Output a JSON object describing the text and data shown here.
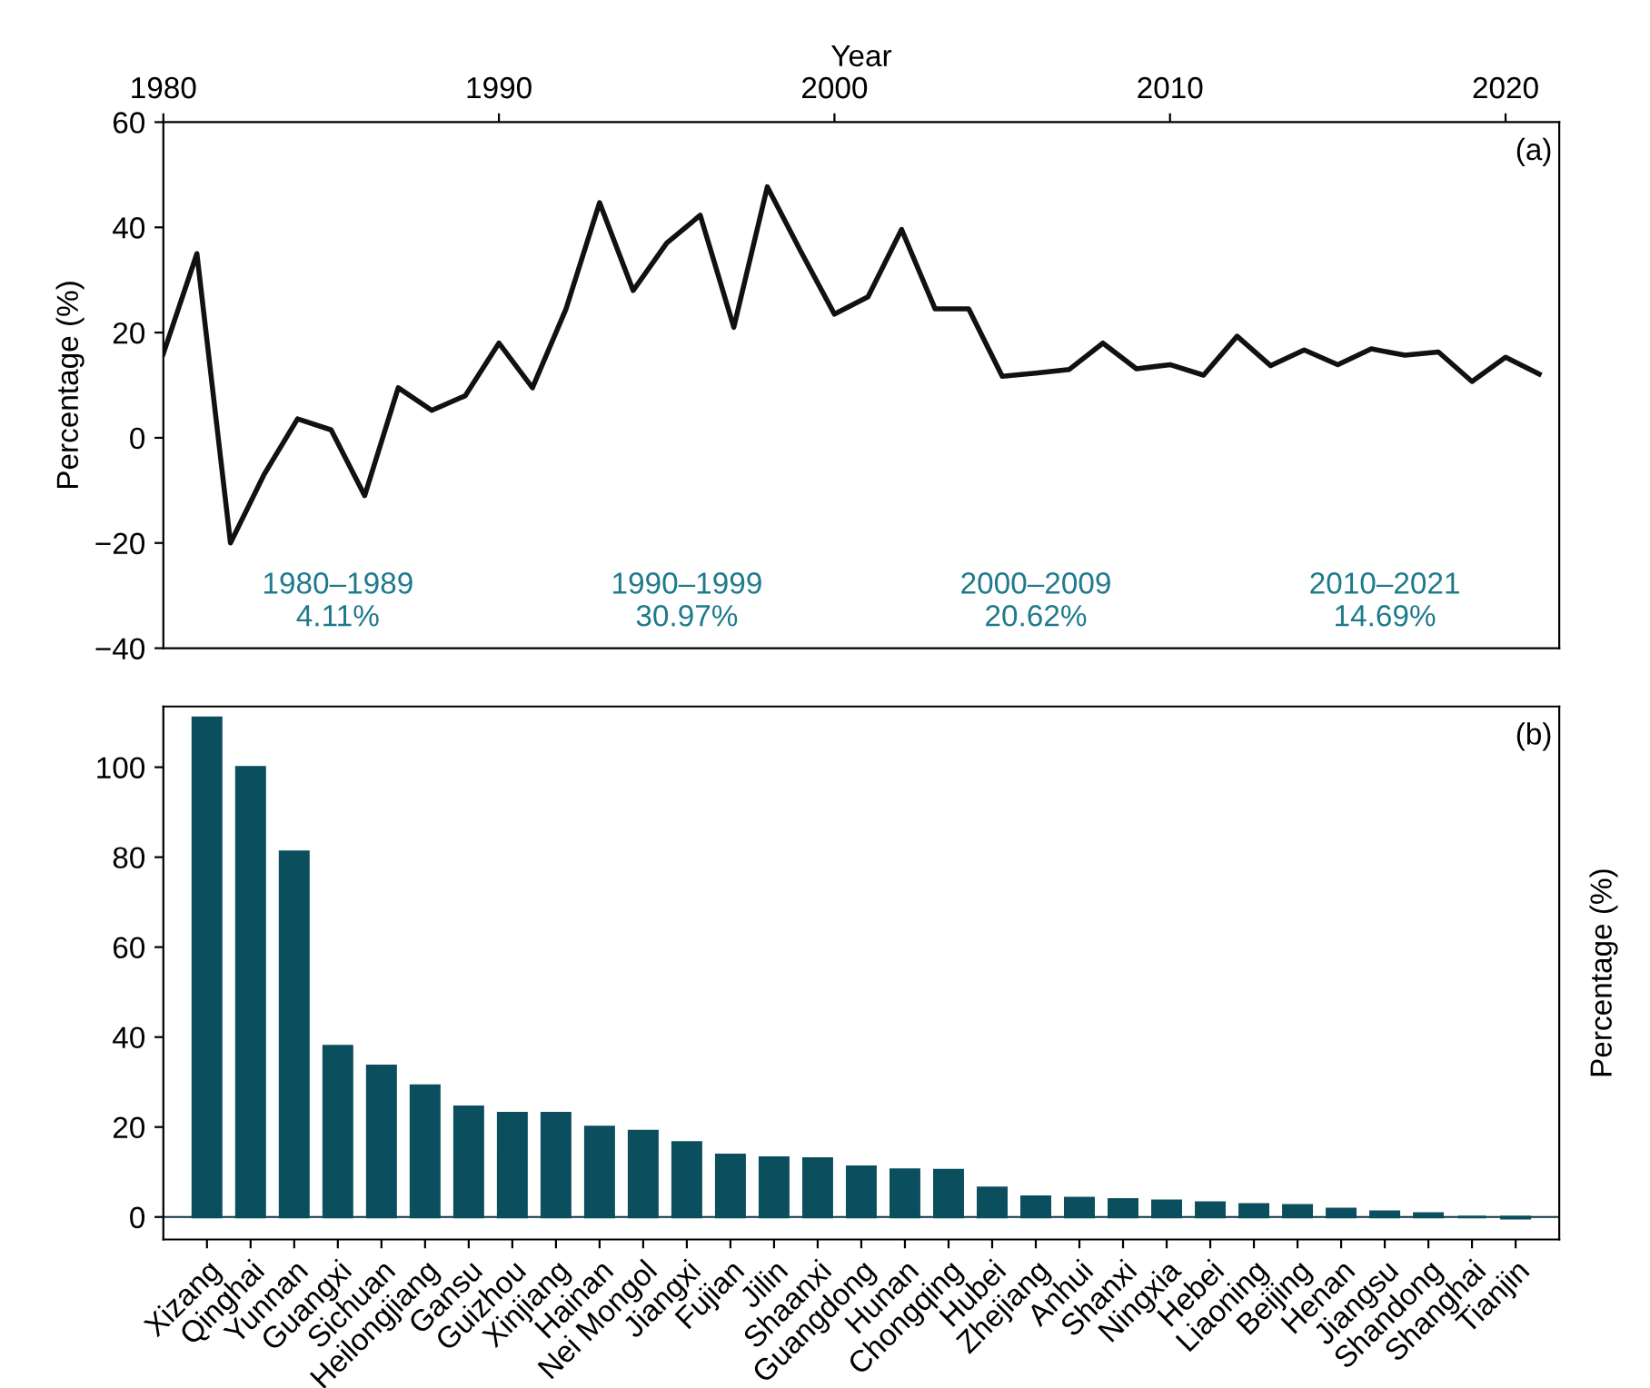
{
  "chart_data": [
    {
      "type": "line",
      "xlabel": "Year",
      "ylabel": "Percentage (%)",
      "xlim": [
        1980,
        2021.6
      ],
      "xticks": [
        1980,
        1990,
        2000,
        2010,
        2020
      ],
      "ylim": [
        -40,
        60
      ],
      "yticks": [
        -40,
        -20,
        0,
        20,
        40,
        60
      ],
      "grid": false,
      "legend": false,
      "marker": "none",
      "line_style": "solid",
      "x": [
        1980,
        1981,
        1982,
        1983,
        1984,
        1985,
        1986,
        1987,
        1988,
        1989,
        1990,
        1991,
        1992,
        1993,
        1994,
        1995,
        1996,
        1997,
        1998,
        1999,
        2000,
        2001,
        2002,
        2003,
        2004,
        2005,
        2006,
        2007,
        2008,
        2009,
        2010,
        2011,
        2012,
        2013,
        2014,
        2015,
        2016,
        2017,
        2018,
        2019,
        2020,
        2021
      ],
      "series": [
        {
          "color": "#111111",
          "values": [
            16,
            35,
            -20,
            -7,
            3.6,
            1.5,
            -11,
            9.5,
            5.2,
            8,
            18,
            9.5,
            24.5,
            44.7,
            28,
            37,
            42.3,
            21,
            47.7,
            35.4,
            23.5,
            26.8,
            39.6,
            24.5,
            24.5,
            11.7,
            12.3,
            13,
            18,
            13.1,
            13.9,
            11.9,
            19.3,
            13.7,
            16.7,
            13.9,
            16.9,
            15.7,
            16.3,
            10.7,
            15.3,
            12.1
          ]
        }
      ],
      "annotations": [
        "(a)",
        "1980–1989\n4.11%",
        "1990–1999\n30.97%",
        "2000–2009\n20.62%",
        "2010–2021\n14.69%"
      ]
    },
    {
      "type": "bar",
      "ylabel": "Percentage (%)",
      "ylim": [
        -5,
        113.5
      ],
      "yticks": [
        0,
        20,
        40,
        60,
        80,
        100
      ],
      "grid": false,
      "legend": false,
      "color": "#0b4f5f",
      "categories": [
        "Xizang",
        "Qinghai",
        "Yunnan",
        "Guangxi",
        "Sichuan",
        "Heilongjiang",
        "Gansu",
        "Guizhou",
        "Xinjiang",
        "Hainan",
        "Nei Mongol",
        "Jiangxi",
        "Fujian",
        "Jilin",
        "Shaanxi",
        "Guangdong",
        "Hunan",
        "Chongqing",
        "Hubei",
        "Zhejiang",
        "Anhui",
        "Shanxi",
        "Ningxia",
        "Hebei",
        "Liaoning",
        "Beijing",
        "Henan",
        "Jiangsu",
        "Shandong",
        "Shanghai",
        "Tianjin"
      ],
      "values": [
        111,
        100,
        81.2,
        38,
        33.6,
        29.2,
        24.5,
        23.1,
        23.1,
        20,
        19.1,
        16.6,
        13.8,
        13.2,
        13,
        11.2,
        10.5,
        10.4,
        6.5,
        4.5,
        4.2,
        3.9,
        3.6,
        3.2,
        2.8,
        2.6,
        1.8,
        1.2,
        0.8,
        0,
        -0.3
      ],
      "annotations": [
        "(b)"
      ]
    }
  ]
}
